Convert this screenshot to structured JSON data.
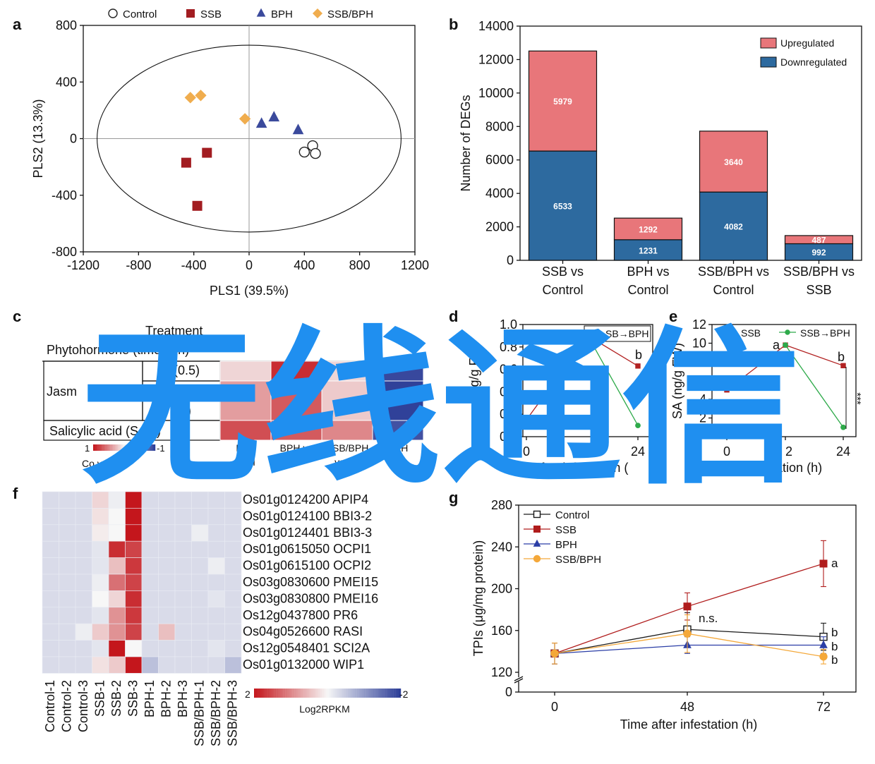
{
  "watermark_text": "无线通信",
  "watermark_color": "#1f8ff0",
  "chart_data": [
    {
      "panel": "a",
      "type": "scatter",
      "xlabel": "PLS1 (39.5%)",
      "ylabel": "PLS2 (13.3%)",
      "xlim": [
        -1200,
        1200
      ],
      "ylim": [
        -800,
        800
      ],
      "xticks": [
        "-1200",
        "-800",
        "-400",
        "0",
        "400",
        "800",
        "1200"
      ],
      "yticks": [
        "800",
        "400",
        "0",
        "-400",
        "-800"
      ],
      "legend_placement": "top",
      "series": [
        {
          "name": "Control",
          "marker": "circle",
          "color": "#ffffff",
          "stroke": "#222222",
          "points": [
            [
              460,
              -50
            ],
            [
              400,
              -95
            ],
            [
              480,
              -105
            ]
          ]
        },
        {
          "name": "SSB",
          "marker": "square",
          "color": "#a21d21",
          "stroke": "#a21d21",
          "points": [
            [
              -305,
              -100
            ],
            [
              -455,
              -170
            ],
            [
              -375,
              -475
            ]
          ]
        },
        {
          "name": "BPH",
          "marker": "triangle",
          "color": "#3b4a9c",
          "stroke": "#3b4a9c",
          "points": [
            [
              180,
              150
            ],
            [
              90,
              105
            ],
            [
              355,
              60
            ]
          ]
        },
        {
          "name": "SSB/BPH",
          "marker": "diamond",
          "color": "#f0ad4e",
          "stroke": "#f0ad4e",
          "points": [
            [
              -350,
              305
            ],
            [
              -425,
              290
            ],
            [
              -30,
              140
            ]
          ]
        }
      ]
    },
    {
      "panel": "b",
      "type": "bar",
      "stacked": true,
      "ylabel": "Number of DEGs",
      "ylim": [
        0,
        14000
      ],
      "yticks": [
        "0",
        "2000",
        "4000",
        "6000",
        "8000",
        "10000",
        "12000",
        "14000"
      ],
      "categories": [
        [
          "SSB vs",
          "Control"
        ],
        [
          "BPH vs",
          "Control"
        ],
        [
          "SSB/BPH vs",
          "Control"
        ],
        [
          "SSB/BPH vs",
          "SSB"
        ]
      ],
      "series": [
        {
          "name": "Downregulated",
          "color": "#2d6a9f",
          "values": [
            6533,
            1231,
            4082,
            992
          ],
          "labels": [
            "6533",
            "1231",
            "4082",
            "992"
          ]
        },
        {
          "name": "Upregulated",
          "color": "#e8767a",
          "values": [
            5979,
            1292,
            3640,
            487
          ],
          "labels": [
            "5979",
            "1292",
            "3640",
            "487"
          ]
        }
      ],
      "legend_placement": "top-right"
    },
    {
      "panel": "c",
      "type": "heatmap",
      "header_partial": "Treatment",
      "column_header_partial": "Phytohormone (time in h)",
      "rows": [
        {
          "group": "Jasm",
          "label": "J (0.5)",
          "values": [
            0.15,
            0.9,
            0.15,
            -0.95
          ]
        },
        {
          "group": "Jasm",
          "label": "3)",
          "values": [
            0.4,
            0.7,
            0.2,
            -0.99
          ]
        },
        {
          "group": "Salicylic acid",
          "label": "Salicylic acid (SA 3)",
          "values": [
            0.75,
            0.7,
            0.5,
            -0.9
          ]
        }
      ],
      "column_labels_partial": [
        [
          "B vs",
          "ntrol"
        ],
        [
          "BPH vs",
          ""
        ],
        [
          "SSB/BPH",
          "vs Co"
        ],
        [
          "BPH",
          "SB"
        ]
      ],
      "colorbar": {
        "min_label": "1",
        "max_label": "-1",
        "title_partial": "Co       values"
      }
    },
    {
      "panel": "d",
      "type": "line",
      "ylabel_partial": "J  ng/g F",
      "xlabel_partial": "Time after infestation (",
      "ylim": [
        0,
        1.0
      ],
      "yticks": [
        "0.0",
        "0.2",
        "0.4",
        "0.6",
        "0.8",
        "1.0"
      ],
      "xticks": [
        "0",
        "24"
      ],
      "legend_partial": "SB→BPH",
      "series": [
        {
          "name": "SSB",
          "color": "#b22222",
          "x": [
            0,
            12,
            24
          ],
          "y": [
            0.15,
            0.9,
            0.63
          ]
        },
        {
          "name": "SSB→BPH",
          "color": "#2eaa4a",
          "x": [
            12,
            24
          ],
          "y": [
            0.9,
            0.1
          ]
        }
      ],
      "annotations": [
        "b"
      ]
    },
    {
      "panel": "e",
      "type": "line",
      "ylabel": "SA (ng/g FW)",
      "xlabel_partial": "ime after    estation (h)",
      "ylim": [
        0,
        12
      ],
      "yticks": [
        "2",
        "4",
        "6",
        "8",
        "10",
        "12"
      ],
      "xticks": [
        "0",
        "2",
        "24"
      ],
      "series": [
        {
          "name": "SSB",
          "color": "#b22222",
          "x": [
            0,
            12,
            24
          ],
          "y": [
            5,
            9.8,
            7.6
          ]
        },
        {
          "name": "SSB→BPH",
          "color": "#2eaa4a",
          "x": [
            12,
            24
          ],
          "y": [
            9.8,
            1.0
          ]
        }
      ],
      "annotations": [
        "a",
        "b",
        "***"
      ]
    },
    {
      "panel": "f",
      "type": "heatmap",
      "columns": [
        "Control-1",
        "Control-2",
        "Control-3",
        "SSB-1",
        "SSB-2",
        "SSB-3",
        "BPH-1",
        "BPH-2",
        "BPH-3",
        "SSB/BPH-1",
        "SSB/BPH-2",
        "SSB/BPH-3"
      ],
      "rows": [
        "Os01g0124200 APIP4",
        "Os01g0124100 BBI3-2",
        "Os01g0124401 BBI3-3",
        "Os01g0615050 OCPI1",
        "Os01g0615100 OCPI2",
        "Os03g0830600 PMEI15",
        "Os03g0830800 PMEI16",
        "Os12g0437800 PR6",
        "Os04g0526600 RASI",
        "Os12g0548401 SCI2A",
        "Os01g0132000 WIP1"
      ],
      "values": [
        [
          -0.3,
          -0.3,
          -0.3,
          0.3,
          -0.1,
          2.0,
          -0.3,
          -0.3,
          -0.3,
          -0.3,
          -0.3,
          -0.3
        ],
        [
          -0.3,
          -0.3,
          -0.3,
          0.2,
          0.0,
          2.0,
          -0.3,
          -0.3,
          -0.3,
          -0.3,
          -0.3,
          -0.3
        ],
        [
          -0.3,
          -0.3,
          -0.3,
          0.1,
          0.0,
          2.0,
          -0.3,
          -0.3,
          -0.3,
          -0.1,
          -0.3,
          -0.3
        ],
        [
          -0.3,
          -0.3,
          -0.3,
          -0.2,
          1.8,
          1.6,
          -0.3,
          -0.3,
          -0.3,
          -0.3,
          -0.3,
          -0.3
        ],
        [
          -0.3,
          -0.3,
          -0.3,
          -0.2,
          0.5,
          1.7,
          -0.3,
          -0.3,
          -0.3,
          -0.3,
          -0.1,
          -0.3
        ],
        [
          -0.3,
          -0.3,
          -0.3,
          -0.1,
          1.2,
          1.6,
          -0.3,
          -0.3,
          -0.3,
          -0.3,
          -0.3,
          -0.3
        ],
        [
          -0.3,
          -0.3,
          -0.3,
          0.0,
          0.3,
          1.8,
          -0.3,
          -0.3,
          -0.3,
          -0.3,
          -0.2,
          -0.3
        ],
        [
          -0.3,
          -0.3,
          -0.3,
          -0.2,
          0.9,
          1.7,
          -0.3,
          -0.3,
          -0.3,
          -0.3,
          -0.3,
          -0.3
        ],
        [
          -0.3,
          -0.3,
          -0.1,
          0.4,
          0.9,
          1.6,
          -0.3,
          0.5,
          -0.3,
          -0.3,
          -0.3,
          -0.3
        ],
        [
          -0.3,
          -0.3,
          -0.3,
          -0.2,
          2.0,
          0.0,
          -0.3,
          -0.3,
          -0.3,
          -0.3,
          -0.2,
          -0.3
        ],
        [
          -0.3,
          -0.3,
          -0.3,
          0.2,
          0.4,
          2.0,
          -0.6,
          -0.3,
          -0.3,
          -0.3,
          -0.3,
          -0.6
        ]
      ],
      "colorbar": {
        "min_label": "2",
        "max_label": "-2",
        "title": "Log2RPKM"
      }
    },
    {
      "panel": "g",
      "type": "line",
      "xlabel": "Time after infestation (h)",
      "ylabel": "TPIs (μg/mg protein)",
      "x": [
        0,
        48,
        72
      ],
      "xticks": [
        "0",
        "48",
        "72"
      ],
      "yticks": [
        "0",
        "120",
        "160",
        "200",
        "240",
        "280"
      ],
      "ylim": [
        120,
        280
      ],
      "axis_break": true,
      "legend_placement": "top-left",
      "series": [
        {
          "name": "Control",
          "marker": "open-square",
          "color": "#1a1a1a",
          "values": [
            138,
            161,
            154
          ],
          "errors": [
            10,
            16,
            13
          ]
        },
        {
          "name": "SSB",
          "marker": "square",
          "color": "#b01c1c",
          "values": [
            138,
            183,
            224
          ],
          "errors": [
            10,
            13,
            22
          ]
        },
        {
          "name": "BPH",
          "marker": "triangle",
          "color": "#2b3ea6",
          "values": [
            138,
            146,
            146
          ],
          "errors": [
            10,
            8,
            8
          ]
        },
        {
          "name": "SSB/BPH",
          "marker": "circle",
          "color": "#f4a83a",
          "values": [
            138,
            157,
            135
          ],
          "errors": [
            10,
            18,
            7
          ]
        }
      ],
      "annotations": [
        {
          "text": "n.s.",
          "at": "SSB@48"
        },
        {
          "text": "a",
          "at": "SSB@72"
        },
        {
          "text": "b",
          "at": "Control@72"
        },
        {
          "text": "b",
          "at": "BPH@72"
        },
        {
          "text": "b",
          "at": "SSB/BPH@72"
        }
      ]
    }
  ]
}
